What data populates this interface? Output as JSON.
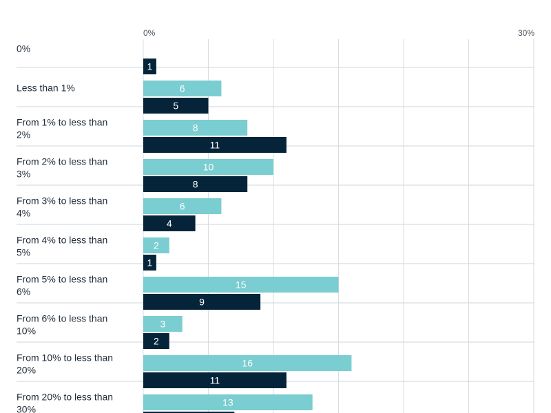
{
  "chart_data": {
    "type": "bar",
    "orientation": "horizontal",
    "title": "",
    "xlabel": "",
    "ylabel": "",
    "xlim": [
      0,
      30
    ],
    "tick_labels": [
      "0%",
      "30%"
    ],
    "grid": true,
    "categories": [
      "0%",
      "Less than 1%",
      "From 1% to less than 2%",
      "From 2% to less than 3%",
      "From 3% to less than 4%",
      "From 4% to less than 5%",
      "From 5% to less than 6%",
      "From 6% to less than 10%",
      "From 10% to less than 20%",
      "From 20% to less than 30%"
    ],
    "series": [
      {
        "color": "#7acdd0",
        "label_color": "#ffffff",
        "values": [
          null,
          6,
          8,
          10,
          6,
          2,
          15,
          3,
          16,
          13
        ]
      },
      {
        "color": "#05243a",
        "label_color": "#ffffff",
        "values": [
          1,
          5,
          11,
          8,
          4,
          1,
          9,
          2,
          11,
          7
        ]
      }
    ]
  }
}
